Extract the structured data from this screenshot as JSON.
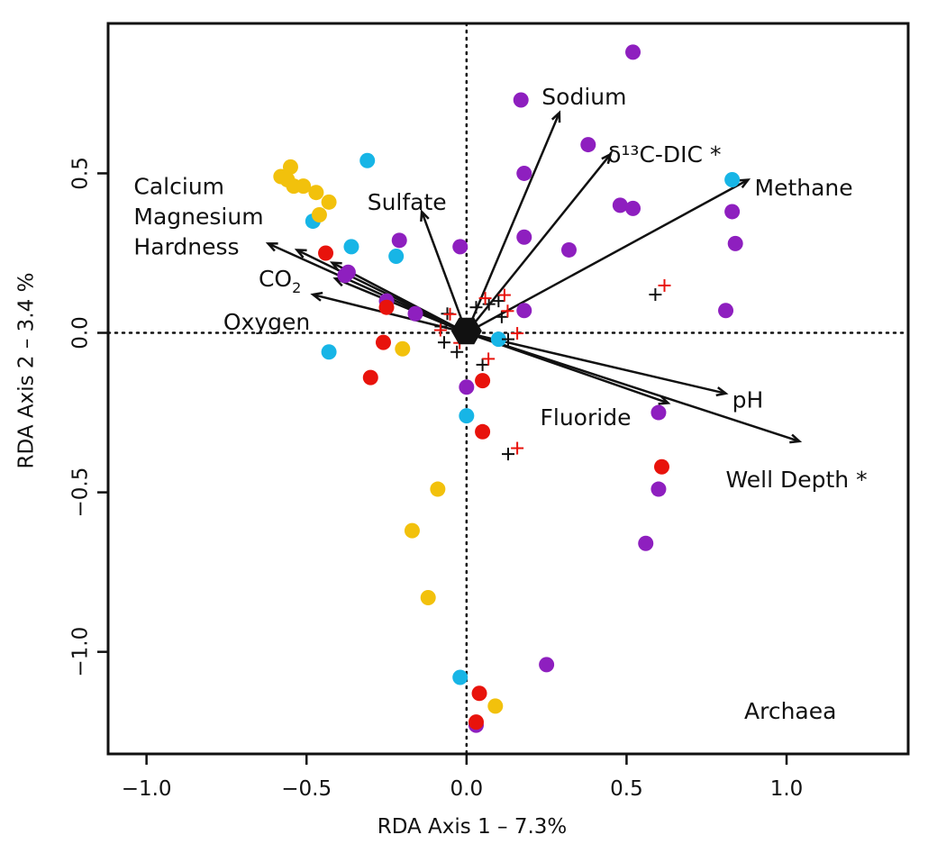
{
  "chart_data": {
    "type": "scatter",
    "title": "",
    "xlabel": "RDA Axis 1 – 7.3%",
    "ylabel": "RDA Axis 2 – 3.4 %",
    "xlim": [
      -1.12,
      1.38
    ],
    "ylim": [
      -1.32,
      0.97
    ],
    "x_ticks": [
      "−1.0",
      "−0.5",
      "0.0",
      "0.5",
      "1.0"
    ],
    "x_tick_values": [
      -1.0,
      -0.5,
      0.0,
      0.5,
      1.0
    ],
    "y_ticks": [
      "−1.0",
      "−0.5",
      "0.0",
      "0.5"
    ],
    "y_tick_values": [
      -1.0,
      -0.5,
      0.0,
      0.5
    ],
    "reference_lines": {
      "x": 0,
      "y": 0,
      "style": "dotted"
    },
    "panel_label": "Archaea",
    "colors": {
      "purple": "#8e1fbf",
      "cyan": "#17b5e6",
      "yellow": "#f2c10c",
      "red": "#e8130c",
      "species_black": "#111111",
      "species_red": "#e8130c"
    },
    "series": [
      {
        "color": "purple",
        "points": [
          [
            0.52,
            0.88
          ],
          [
            0.17,
            0.73
          ],
          [
            0.38,
            0.59
          ],
          [
            0.18,
            0.5
          ],
          [
            0.48,
            0.4
          ],
          [
            0.52,
            0.39
          ],
          [
            0.83,
            0.38
          ],
          [
            0.84,
            0.28
          ],
          [
            -0.21,
            0.29
          ],
          [
            0.18,
            0.3
          ],
          [
            -0.02,
            0.27
          ],
          [
            0.32,
            0.26
          ],
          [
            -0.37,
            0.19
          ],
          [
            -0.38,
            0.18
          ],
          [
            -0.25,
            0.1
          ],
          [
            -0.16,
            0.06
          ],
          [
            0.18,
            0.07
          ],
          [
            0.81,
            0.07
          ],
          [
            0.6,
            -0.25
          ],
          [
            0.6,
            -0.49
          ],
          [
            0.56,
            -0.66
          ],
          [
            0.0,
            -0.17
          ],
          [
            0.25,
            -1.04
          ],
          [
            0.03,
            -1.23
          ]
        ]
      },
      {
        "color": "cyan",
        "points": [
          [
            -0.31,
            0.54
          ],
          [
            0.83,
            0.48
          ],
          [
            -0.48,
            0.35
          ],
          [
            -0.36,
            0.27
          ],
          [
            -0.22,
            0.24
          ],
          [
            0.1,
            -0.02
          ],
          [
            -0.43,
            -0.06
          ],
          [
            0.0,
            -0.26
          ],
          [
            -0.02,
            -1.08
          ]
        ]
      },
      {
        "color": "yellow",
        "points": [
          [
            -0.58,
            0.49
          ],
          [
            -0.55,
            0.52
          ],
          [
            -0.56,
            0.48
          ],
          [
            -0.54,
            0.46
          ],
          [
            -0.51,
            0.46
          ],
          [
            -0.47,
            0.44
          ],
          [
            -0.46,
            0.37
          ],
          [
            -0.43,
            0.41
          ],
          [
            -0.2,
            -0.05
          ],
          [
            -0.09,
            -0.49
          ],
          [
            -0.17,
            -0.62
          ],
          [
            -0.12,
            -0.83
          ],
          [
            0.09,
            -1.17
          ]
        ]
      },
      {
        "color": "red",
        "points": [
          [
            -0.44,
            0.25
          ],
          [
            -0.25,
            0.08
          ],
          [
            -0.26,
            -0.03
          ],
          [
            -0.3,
            -0.14
          ],
          [
            0.05,
            -0.15
          ],
          [
            0.05,
            -0.31
          ],
          [
            0.61,
            -0.42
          ],
          [
            0.04,
            -1.13
          ],
          [
            0.03,
            -1.22
          ]
        ]
      }
    ],
    "species_points": {
      "black": [
        [
          -0.06,
          0.06
        ],
        [
          -0.08,
          0.02
        ],
        [
          -0.07,
          -0.03
        ],
        [
          -0.03,
          -0.06
        ],
        [
          0.0,
          0.02
        ],
        [
          0.03,
          0.08
        ],
        [
          0.07,
          0.09
        ],
        [
          0.1,
          0.1
        ],
        [
          0.11,
          0.05
        ],
        [
          0.13,
          -0.02
        ],
        [
          0.05,
          -0.1
        ],
        [
          0.59,
          0.12
        ],
        [
          0.13,
          -0.38
        ]
      ],
      "red": [
        [
          -0.06,
          0.05
        ],
        [
          -0.09,
          0.0
        ],
        [
          -0.03,
          -0.04
        ],
        [
          0.05,
          0.1
        ],
        [
          0.11,
          0.11
        ],
        [
          0.12,
          0.06
        ],
        [
          0.15,
          -0.01
        ],
        [
          0.06,
          -0.09
        ],
        [
          0.61,
          0.14
        ],
        [
          0.15,
          -0.37
        ]
      ]
    },
    "vectors": [
      {
        "label": "Sodium",
        "x": 0.29,
        "y": 0.69
      },
      {
        "label": "δ¹³C-DIC *",
        "x": 0.45,
        "y": 0.56
      },
      {
        "label": "Methane",
        "x": 0.88,
        "y": 0.48
      },
      {
        "label": "Sulfate",
        "x": -0.14,
        "y": 0.38
      },
      {
        "label": "Calcium",
        "x": -0.53,
        "y": 0.26
      },
      {
        "label": "Magnesium",
        "x": -0.62,
        "y": 0.28
      },
      {
        "label": "Hardness",
        "x": -0.42,
        "y": 0.22
      },
      {
        "label": "CO2",
        "x": -0.41,
        "y": 0.17
      },
      {
        "label": "Oxygen",
        "x": -0.48,
        "y": 0.12
      },
      {
        "label": "pH",
        "x": 0.81,
        "y": -0.19
      },
      {
        "label": "Fluoride",
        "x": 0.63,
        "y": -0.22
      },
      {
        "label": "Well Depth *",
        "x": 1.04,
        "y": -0.34
      }
    ],
    "vector_labels": [
      {
        "text": "Sodium",
        "lx": 0.235,
        "ly": 0.735,
        "anchor": "start"
      },
      {
        "text": "δ¹³C-DIC *",
        "lx": 0.44,
        "ly": 0.555,
        "anchor": "start"
      },
      {
        "text": "Methane",
        "lx": 0.9,
        "ly": 0.45,
        "anchor": "start"
      },
      {
        "text": "Sulfate",
        "lx": -0.31,
        "ly": 0.405,
        "anchor": "start"
      },
      {
        "text": "Calcium",
        "lx": -1.04,
        "ly": 0.455,
        "anchor": "start"
      },
      {
        "text": "Magnesium",
        "lx": -1.04,
        "ly": 0.36,
        "anchor": "start"
      },
      {
        "text": "Hardness",
        "lx": -1.04,
        "ly": 0.265,
        "anchor": "start"
      },
      {
        "text": "CO",
        "lx": -0.65,
        "ly": 0.165,
        "anchor": "start",
        "sub": "2"
      },
      {
        "text": "Oxygen",
        "lx": -0.76,
        "ly": 0.03,
        "anchor": "start"
      },
      {
        "text": "pH",
        "lx": 0.83,
        "ly": -0.215,
        "anchor": "start"
      },
      {
        "text": "Fluoride",
        "lx": 0.23,
        "ly": -0.27,
        "anchor": "start"
      },
      {
        "text": "Well Depth *",
        "lx": 0.81,
        "ly": -0.465,
        "anchor": "start"
      }
    ]
  }
}
